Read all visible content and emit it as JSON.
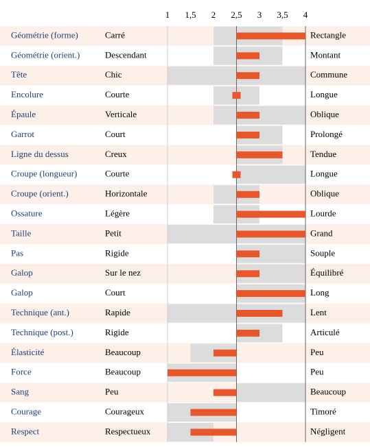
{
  "chart_data": {
    "type": "diverging-range",
    "categories": [
      "Géométrie (forme)",
      "Géométrie (orient.)",
      "Tête",
      "Encolure",
      "Épaule",
      "Garrot",
      "Ligne du dessus",
      "Croupe (longueur)",
      "Croupe (orient.)",
      "Ossature",
      "Taille",
      "Pas",
      "Galop",
      "Galop",
      "Technique (ant.)",
      "Technique (post.)",
      "Élasticité",
      "Force",
      "Sang",
      "Courage",
      "Respect"
    ],
    "left_labels": [
      "Carré",
      "Descendant",
      "Chic",
      "Courte",
      "Verticale",
      "Court",
      "Creux",
      "Courte",
      "Horizontale",
      "Légère",
      "Petit",
      "Rigide",
      "Sur le nez",
      "Court",
      "Rapide",
      "Rigide",
      "Beaucoup",
      "Beaucoup",
      "Peu",
      "Courageux",
      "Respectueux"
    ],
    "right_labels": [
      "Rectangle",
      "Montant",
      "Commune",
      "Longue",
      "Oblique",
      "Prolongé",
      "Tendue",
      "Longue",
      "Oblique",
      "Lourde",
      "Grand",
      "Souple",
      "Équilibré",
      "Long",
      "Lent",
      "Articulé",
      "Peu",
      "Peu",
      "Beaucoup",
      "Timoré",
      "Négligent"
    ],
    "values": [
      4,
      3,
      3,
      2.5,
      3,
      3,
      3.5,
      2.5,
      3,
      4,
      4,
      3,
      3,
      4,
      3.5,
      3,
      2,
      1,
      2,
      1.5,
      1.5
    ],
    "ranges": [
      [
        2,
        3.5
      ],
      [
        2,
        3.5
      ],
      [
        1,
        4
      ],
      [
        2,
        3
      ],
      [
        2,
        4
      ],
      [
        2.5,
        3.5
      ],
      [
        2.5,
        3.5
      ],
      [
        2.5,
        4
      ],
      [
        2,
        3
      ],
      [
        2,
        3
      ],
      [
        1,
        4
      ],
      [
        2.5,
        4
      ],
      [
        2.5,
        4
      ],
      [
        2.5,
        4
      ],
      [
        1,
        4
      ],
      [
        2.5,
        3.5
      ],
      [
        1.5,
        2.5
      ],
      [
        1,
        2.5
      ],
      [
        2.5,
        4
      ],
      [
        1,
        2.5
      ],
      [
        1,
        2
      ]
    ],
    "color": "#e8562a",
    "range_color": "#dcdcdc",
    "row_color": "#fdf0e9",
    "xlim": [
      1,
      4
    ],
    "xticks": [
      1,
      {
        "value": 1.5,
        "label": "1,5"
      },
      2,
      {
        "value": 2.5,
        "label": "2,5"
      },
      3,
      {
        "value": 3.5,
        "label": "3,5"
      },
      4
    ]
  }
}
